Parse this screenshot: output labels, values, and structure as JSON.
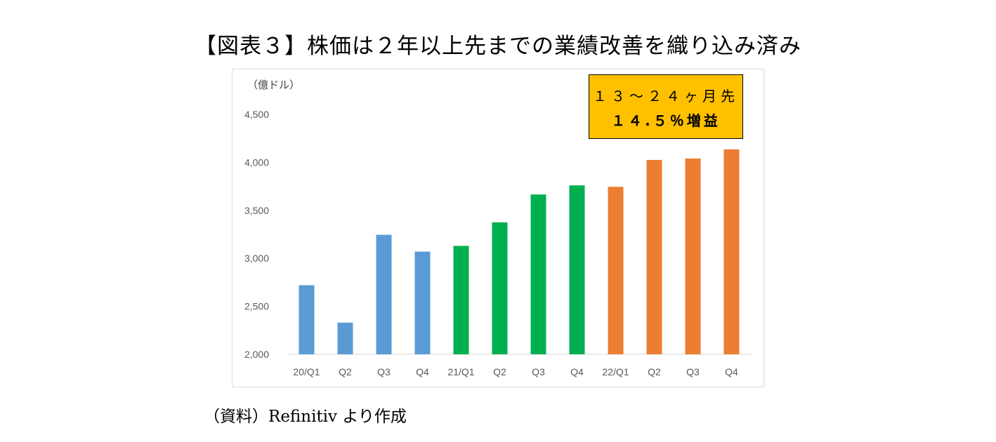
{
  "title": "【図表３】株価は２年以上先までの業績改善を織り込み済み",
  "source": "（資料）Refinitiv より作成",
  "chart_data": {
    "type": "bar",
    "unit_label": "（億ドル）",
    "categories": [
      "20/Q1",
      "Q2",
      "Q3",
      "Q4",
      "21/Q1",
      "Q2",
      "Q3",
      "Q4",
      "22/Q1",
      "Q2",
      "Q3",
      "Q4"
    ],
    "values": [
      2720,
      2330,
      3245,
      3070,
      3130,
      3375,
      3665,
      3760,
      3745,
      4025,
      4040,
      4135
    ],
    "bar_colors": [
      "#5B9BD5",
      "#5B9BD5",
      "#5B9BD5",
      "#5B9BD5",
      "#00B050",
      "#00B050",
      "#00B050",
      "#00B050",
      "#ED7D31",
      "#ED7D31",
      "#ED7D31",
      "#ED7D31"
    ],
    "ylim": [
      2000,
      4500
    ],
    "yticks": [
      2000,
      2500,
      3000,
      3500,
      4000,
      4500
    ],
    "ytick_labels": [
      "2,000",
      "2,500",
      "3,000",
      "3,500",
      "4,000",
      "4,500"
    ],
    "grid": false,
    "annotation": {
      "line1": "１３～２４ヶ月先",
      "line2": "１４.５％増益",
      "background": "#FFC000"
    }
  }
}
